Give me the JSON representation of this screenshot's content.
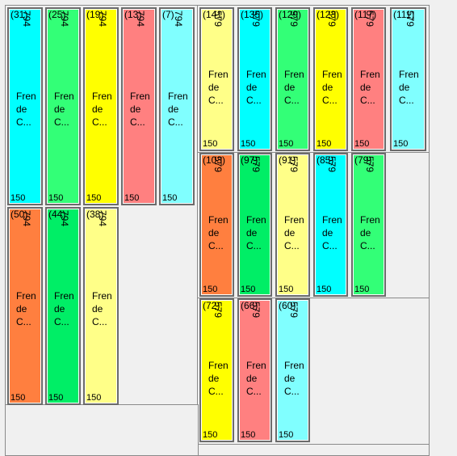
{
  "colors": {
    "cyan": "#00ffff",
    "green": "#33ff77",
    "yellow": "#ffff00",
    "salmon": "#ff8080",
    "lightcyan": "#80ffff",
    "lightyellow": "#ffff88",
    "orange": "#ff7f3f",
    "springgreen": "#00ee66"
  },
  "pieces": [
    {
      "id": "(31)",
      "length": "794",
      "width": "150",
      "line1": "Fren",
      "line2": "de",
      "line3": "C...",
      "color": "cyan"
    },
    {
      "id": "(25)",
      "length": "794",
      "width": "150",
      "line1": "Fren",
      "line2": "de",
      "line3": "C...",
      "color": "green"
    },
    {
      "id": "(19)",
      "length": "794",
      "width": "150",
      "line1": "Fren",
      "line2": "de",
      "line3": "C...",
      "color": "yellow"
    },
    {
      "id": "(13)",
      "length": "794",
      "width": "150",
      "line1": "Fren",
      "line2": "de",
      "line3": "C...",
      "color": "salmon"
    },
    {
      "id": "(7)",
      "length": "794",
      "width": "150",
      "line1": "Fren",
      "line2": "de",
      "line3": "C...",
      "color": "lightcyan"
    },
    {
      "id": "(50)",
      "length": "794",
      "width": "150",
      "line1": "Fren",
      "line2": "de",
      "line3": "C...",
      "color": "orange"
    },
    {
      "id": "(44)",
      "length": "794",
      "width": "150",
      "line1": "Fren",
      "line2": "de",
      "line3": "C...",
      "color": "springgreen"
    },
    {
      "id": "(38)",
      "length": "794",
      "width": "150",
      "line1": "Fren",
      "line2": "de",
      "line3": "C...",
      "color": "lightyellow"
    },
    {
      "id": "(141)",
      "length": "579",
      "width": "150",
      "line1": "Fren",
      "line2": "de",
      "line3": "C...",
      "color": "lightyellow"
    },
    {
      "id": "(135)",
      "length": "579",
      "width": "150",
      "line1": "Fren",
      "line2": "de",
      "line3": "C...",
      "color": "cyan"
    },
    {
      "id": "(129)",
      "length": "579",
      "width": "150",
      "line1": "Fren",
      "line2": "de",
      "line3": "C...",
      "color": "green"
    },
    {
      "id": "(123)",
      "length": "579",
      "width": "150",
      "line1": "Fren",
      "line2": "de",
      "line3": "C...",
      "color": "yellow"
    },
    {
      "id": "(117)",
      "length": "579",
      "width": "150",
      "line1": "Fren",
      "line2": "de",
      "line3": "C...",
      "color": "salmon"
    },
    {
      "id": "(111)",
      "length": "579",
      "width": "150",
      "line1": "Fren",
      "line2": "de",
      "line3": "C...",
      "color": "lightcyan"
    },
    {
      "id": "(103)",
      "length": "579",
      "width": "150",
      "line1": "Fren",
      "line2": "de",
      "line3": "C...",
      "color": "orange"
    },
    {
      "id": "(97)",
      "length": "579",
      "width": "150",
      "line1": "Fren",
      "line2": "de",
      "line3": "C...",
      "color": "springgreen"
    },
    {
      "id": "(91)",
      "length": "579",
      "width": "150",
      "line1": "Fren",
      "line2": "de",
      "line3": "C...",
      "color": "lightyellow"
    },
    {
      "id": "(85)",
      "length": "579",
      "width": "150",
      "line1": "Fren",
      "line2": "de",
      "line3": "C...",
      "color": "cyan"
    },
    {
      "id": "(79)",
      "length": "579",
      "width": "150",
      "line1": "Fren",
      "line2": "de",
      "line3": "C...",
      "color": "green"
    },
    {
      "id": "(72)",
      "length": "579",
      "width": "150",
      "line1": "Fren",
      "line2": "de",
      "line3": "C...",
      "color": "yellow"
    },
    {
      "id": "(66)",
      "length": "579",
      "width": "150",
      "line1": "Fren",
      "line2": "de",
      "line3": "C...",
      "color": "salmon"
    },
    {
      "id": "(60)",
      "length": "579",
      "width": "150",
      "line1": "Fren",
      "line2": "de",
      "line3": "C...",
      "color": "lightcyan"
    }
  ]
}
